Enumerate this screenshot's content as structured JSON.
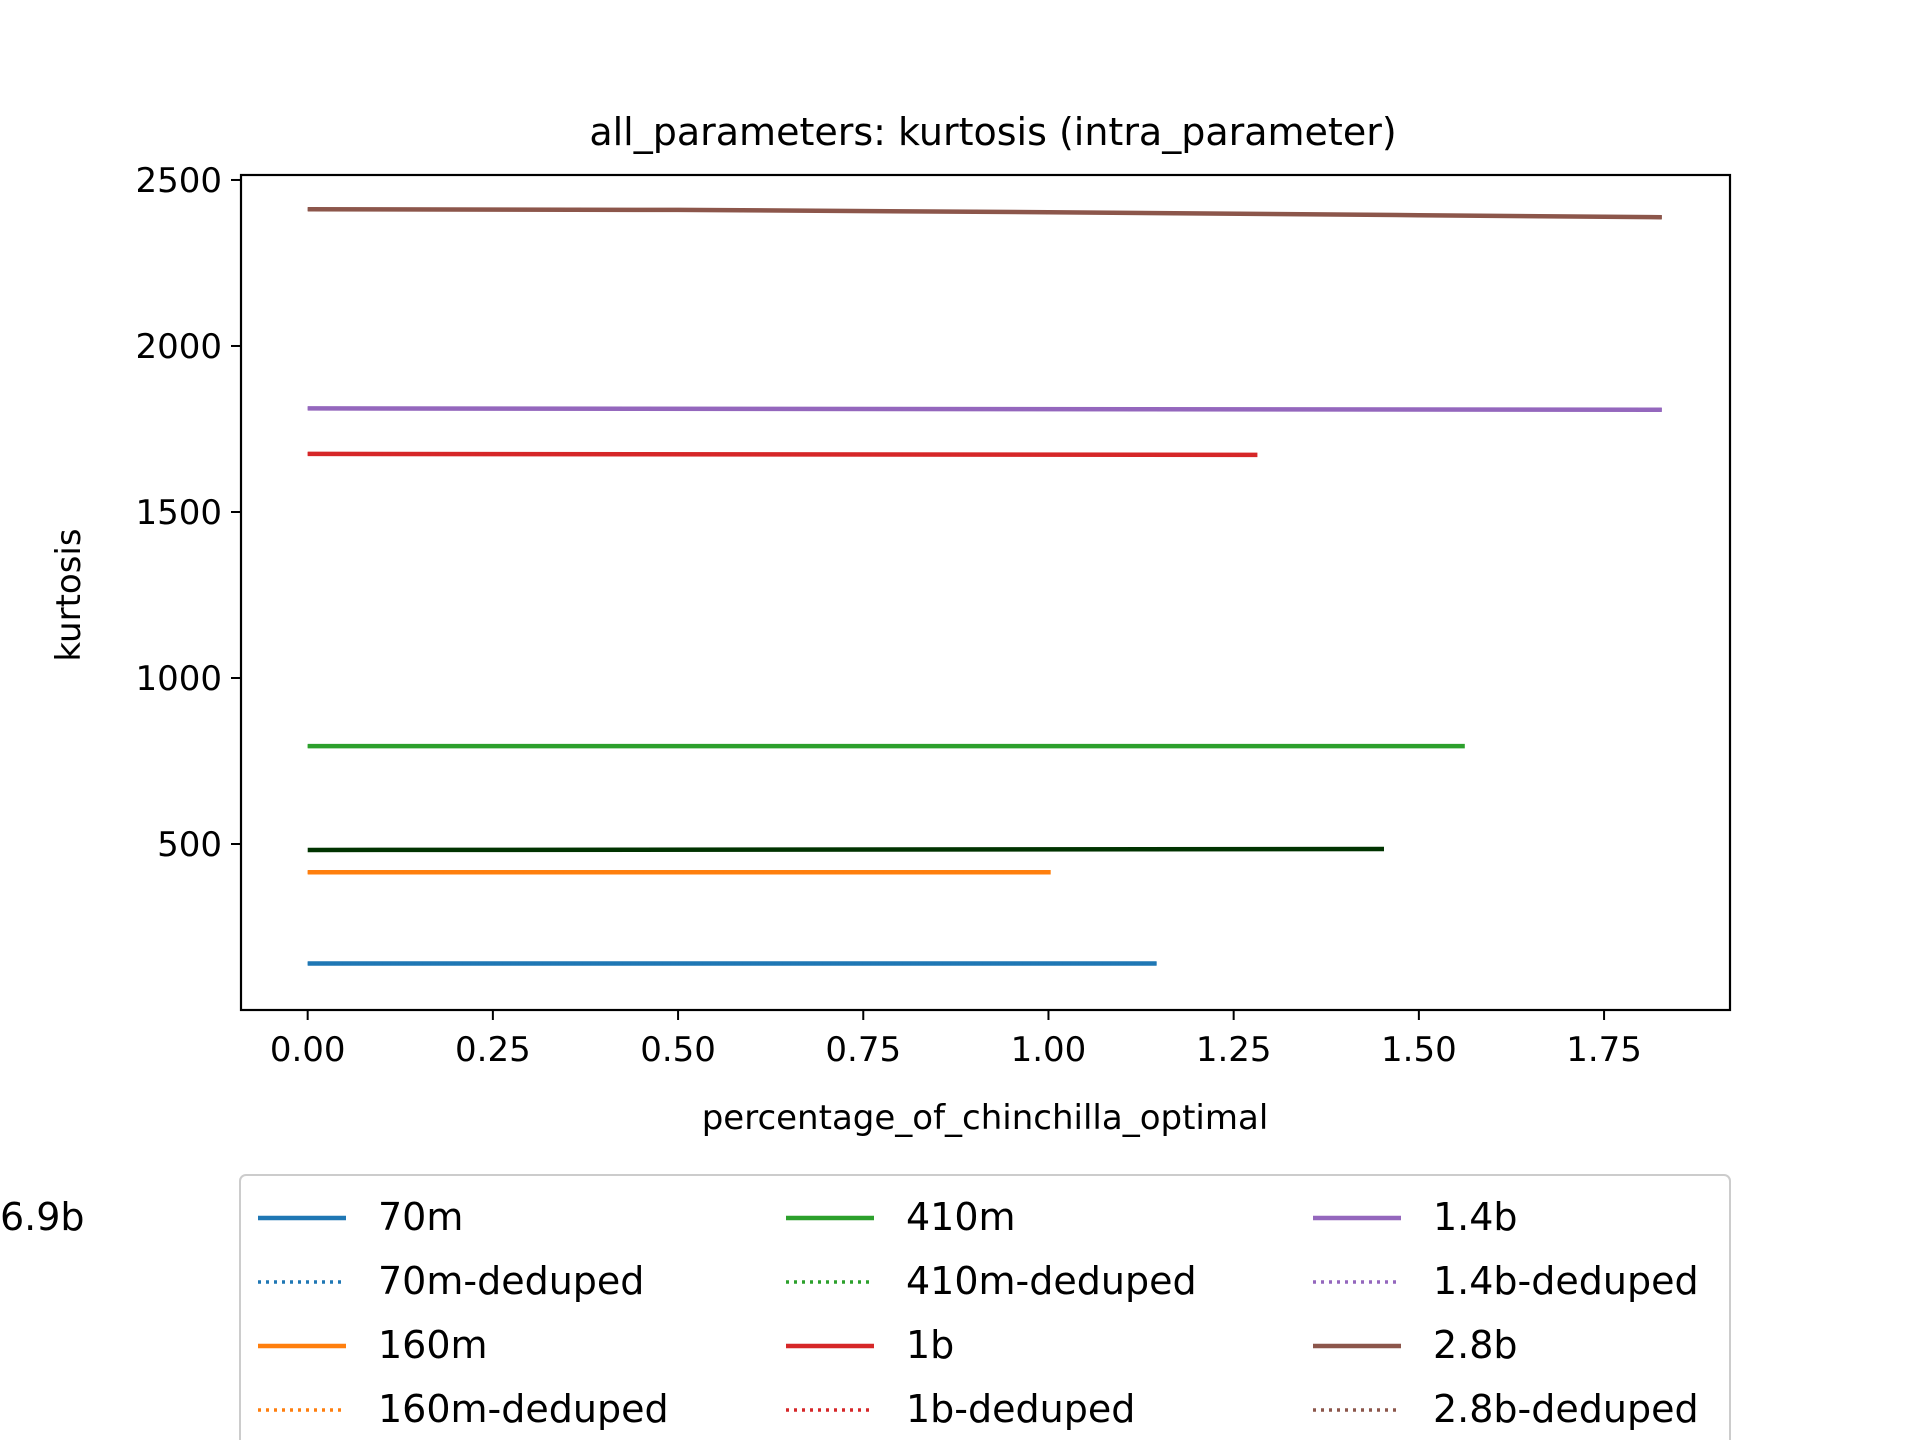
{
  "chart_data": {
    "type": "line",
    "title": "all_parameters: kurtosis (intra_parameter)",
    "xlabel": "percentage_of_chinchilla_optimal",
    "ylabel": "kurtosis",
    "xlim": [
      -0.09,
      1.92
    ],
    "ylim": [
      0,
      2515
    ],
    "xticks": [
      "0.00",
      "0.25",
      "0.50",
      "0.75",
      "1.00",
      "1.25",
      "1.50",
      "1.75"
    ],
    "yticks": [
      "500",
      "1000",
      "1500",
      "2000",
      "2500"
    ],
    "grid": false,
    "legend_placement": "below plot, 3 columns",
    "series": [
      {
        "name": "70m",
        "color": "#1f77b4",
        "style": "solid",
        "x": [
          0.0,
          1.146
        ],
        "y": [
          140,
          140
        ]
      },
      {
        "name": "70m-deduped",
        "color": "#1f77b4",
        "style": "dotted",
        "x": [
          0.0,
          1.146
        ],
        "y": [
          140,
          140
        ]
      },
      {
        "name": "160m",
        "color": "#ff7f0e",
        "style": "solid",
        "x": [
          0.0,
          1.003
        ],
        "y": [
          415,
          415
        ]
      },
      {
        "name": "160m-deduped",
        "color": "#ff7f0e",
        "style": "dotted",
        "x": [
          0.0,
          1.003
        ],
        "y": [
          415,
          415
        ]
      },
      {
        "name": "410m",
        "color": "#2ca02c",
        "style": "solid",
        "x": [
          0.0,
          1.562
        ],
        "y": [
          795,
          795
        ]
      },
      {
        "name": "410m-deduped",
        "color": "#2ca02c",
        "style": "dotted",
        "x": [
          0.0,
          1.562
        ],
        "y": [
          795,
          795
        ]
      },
      {
        "name": "1b",
        "color": "#d62728",
        "style": "solid",
        "x": [
          0.0,
          1.282
        ],
        "y": [
          1675,
          1672
        ]
      },
      {
        "name": "1b-deduped",
        "color": "#d62728",
        "style": "dotted",
        "x": [
          0.0,
          1.282
        ],
        "y": [
          1675,
          1672
        ]
      },
      {
        "name": "1.4b",
        "color": "#9467bd",
        "style": "solid",
        "x": [
          0.0,
          1.828
        ],
        "y": [
          1812,
          1808
        ]
      },
      {
        "name": "1.4b-deduped",
        "color": "#9467bd",
        "style": "dotted",
        "x": [
          0.0,
          1.828
        ],
        "y": [
          1812,
          1808
        ]
      },
      {
        "name": "2.8b",
        "color": "#8c564b",
        "style": "solid",
        "x": [
          0.0,
          0.5,
          1.0,
          1.5,
          1.828
        ],
        "y": [
          2412,
          2410,
          2403,
          2394,
          2388
        ]
      },
      {
        "name": "2.8b-deduped",
        "color": "#8c564b",
        "style": "dotted",
        "x": [
          0.0,
          0.5,
          1.0,
          1.5,
          1.828
        ],
        "y": [
          2412,
          2410,
          2403,
          2394,
          2388
        ]
      },
      {
        "name": "6.9b",
        "color": "#003300",
        "style": "solid",
        "x": [
          0.0,
          1.453
        ],
        "y": [
          482,
          485
        ]
      }
    ]
  }
}
